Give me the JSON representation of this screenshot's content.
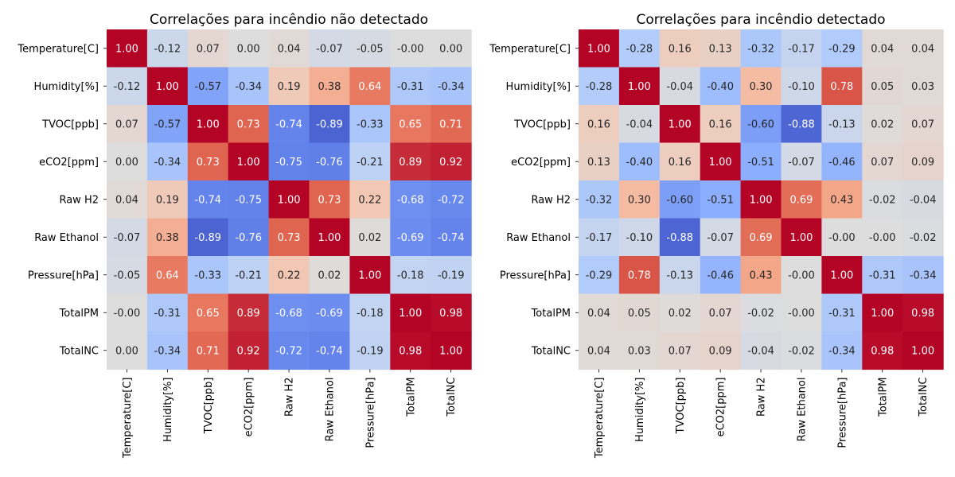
{
  "chart_data": [
    {
      "type": "heatmap",
      "title": "Correlações para incêndio não detectado",
      "xlabel": "",
      "ylabel": "",
      "colormap": "coolwarm",
      "vlim": [
        -1,
        1
      ],
      "grid": false,
      "legend": "none",
      "rows": [
        "Temperature[C]",
        "Humidity[%]",
        "TVOC[ppb]",
        "eCO2[ppm]",
        "Raw H2",
        "Raw Ethanol",
        "Pressure[hPa]",
        "TotalPM",
        "TotalNC"
      ],
      "columns": [
        "Temperature[C]",
        "Humidity[%]",
        "TVOC[ppb]",
        "eCO2[ppm]",
        "Raw H2",
        "Raw Ethanol",
        "Pressure[hPa]",
        "TotalPM",
        "TotalNC"
      ],
      "labels": [
        [
          "1.00",
          "-0.12",
          "0.07",
          "0.00",
          "0.04",
          "-0.07",
          "-0.05",
          "-0.00",
          "0.00"
        ],
        [
          "-0.12",
          "1.00",
          "-0.57",
          "-0.34",
          "0.19",
          "0.38",
          "0.64",
          "-0.31",
          "-0.34"
        ],
        [
          "0.07",
          "-0.57",
          "1.00",
          "0.73",
          "-0.74",
          "-0.89",
          "-0.33",
          "0.65",
          "0.71"
        ],
        [
          "0.00",
          "-0.34",
          "0.73",
          "1.00",
          "-0.75",
          "-0.76",
          "-0.21",
          "0.89",
          "0.92"
        ],
        [
          "0.04",
          "0.19",
          "-0.74",
          "-0.75",
          "1.00",
          "0.73",
          "0.22",
          "-0.68",
          "-0.72"
        ],
        [
          "-0.07",
          "0.38",
          "-0.89",
          "-0.76",
          "0.73",
          "1.00",
          "0.02",
          "-0.69",
          "-0.74"
        ],
        [
          "-0.05",
          "0.64",
          "-0.33",
          "-0.21",
          "0.22",
          "0.02",
          "1.00",
          "-0.18",
          "-0.19"
        ],
        [
          "-0.00",
          "-0.31",
          "0.65",
          "0.89",
          "-0.68",
          "-0.69",
          "-0.18",
          "1.00",
          "0.98"
        ],
        [
          "0.00",
          "-0.34",
          "0.71",
          "0.92",
          "-0.72",
          "-0.74",
          "-0.19",
          "0.98",
          "1.00"
        ]
      ]
    },
    {
      "type": "heatmap",
      "title": "Correlações para incêndio detectado",
      "xlabel": "",
      "ylabel": "",
      "colormap": "coolwarm",
      "vlim": [
        -1,
        1
      ],
      "grid": false,
      "legend": "none",
      "rows": [
        "Temperature[C]",
        "Humidity[%]",
        "TVOC[ppb]",
        "eCO2[ppm]",
        "Raw H2",
        "Raw Ethanol",
        "Pressure[hPa]",
        "TotalPM",
        "TotalNC"
      ],
      "columns": [
        "Temperature[C]",
        "Humidity[%]",
        "TVOC[ppb]",
        "eCO2[ppm]",
        "Raw H2",
        "Raw Ethanol",
        "Pressure[hPa]",
        "TotalPM",
        "TotalNC"
      ],
      "labels": [
        [
          "1.00",
          "-0.28",
          "0.16",
          "0.13",
          "-0.32",
          "-0.17",
          "-0.29",
          "0.04",
          "0.04"
        ],
        [
          "-0.28",
          "1.00",
          "-0.04",
          "-0.40",
          "0.30",
          "-0.10",
          "0.78",
          "0.05",
          "0.03"
        ],
        [
          "0.16",
          "-0.04",
          "1.00",
          "0.16",
          "-0.60",
          "-0.88",
          "-0.13",
          "0.02",
          "0.07"
        ],
        [
          "0.13",
          "-0.40",
          "0.16",
          "1.00",
          "-0.51",
          "-0.07",
          "-0.46",
          "0.07",
          "0.09"
        ],
        [
          "-0.32",
          "0.30",
          "-0.60",
          "-0.51",
          "1.00",
          "0.69",
          "0.43",
          "-0.02",
          "-0.04"
        ],
        [
          "-0.17",
          "-0.10",
          "-0.88",
          "-0.07",
          "0.69",
          "1.00",
          "-0.00",
          "-0.00",
          "-0.02"
        ],
        [
          "-0.29",
          "0.78",
          "-0.13",
          "-0.46",
          "0.43",
          "-0.00",
          "1.00",
          "-0.31",
          "-0.34"
        ],
        [
          "0.04",
          "0.05",
          "0.02",
          "0.07",
          "-0.02",
          "-0.00",
          "-0.31",
          "1.00",
          "0.98"
        ],
        [
          "0.04",
          "0.03",
          "0.07",
          "0.09",
          "-0.04",
          "-0.02",
          "-0.34",
          "0.98",
          "1.00"
        ]
      ]
    }
  ]
}
